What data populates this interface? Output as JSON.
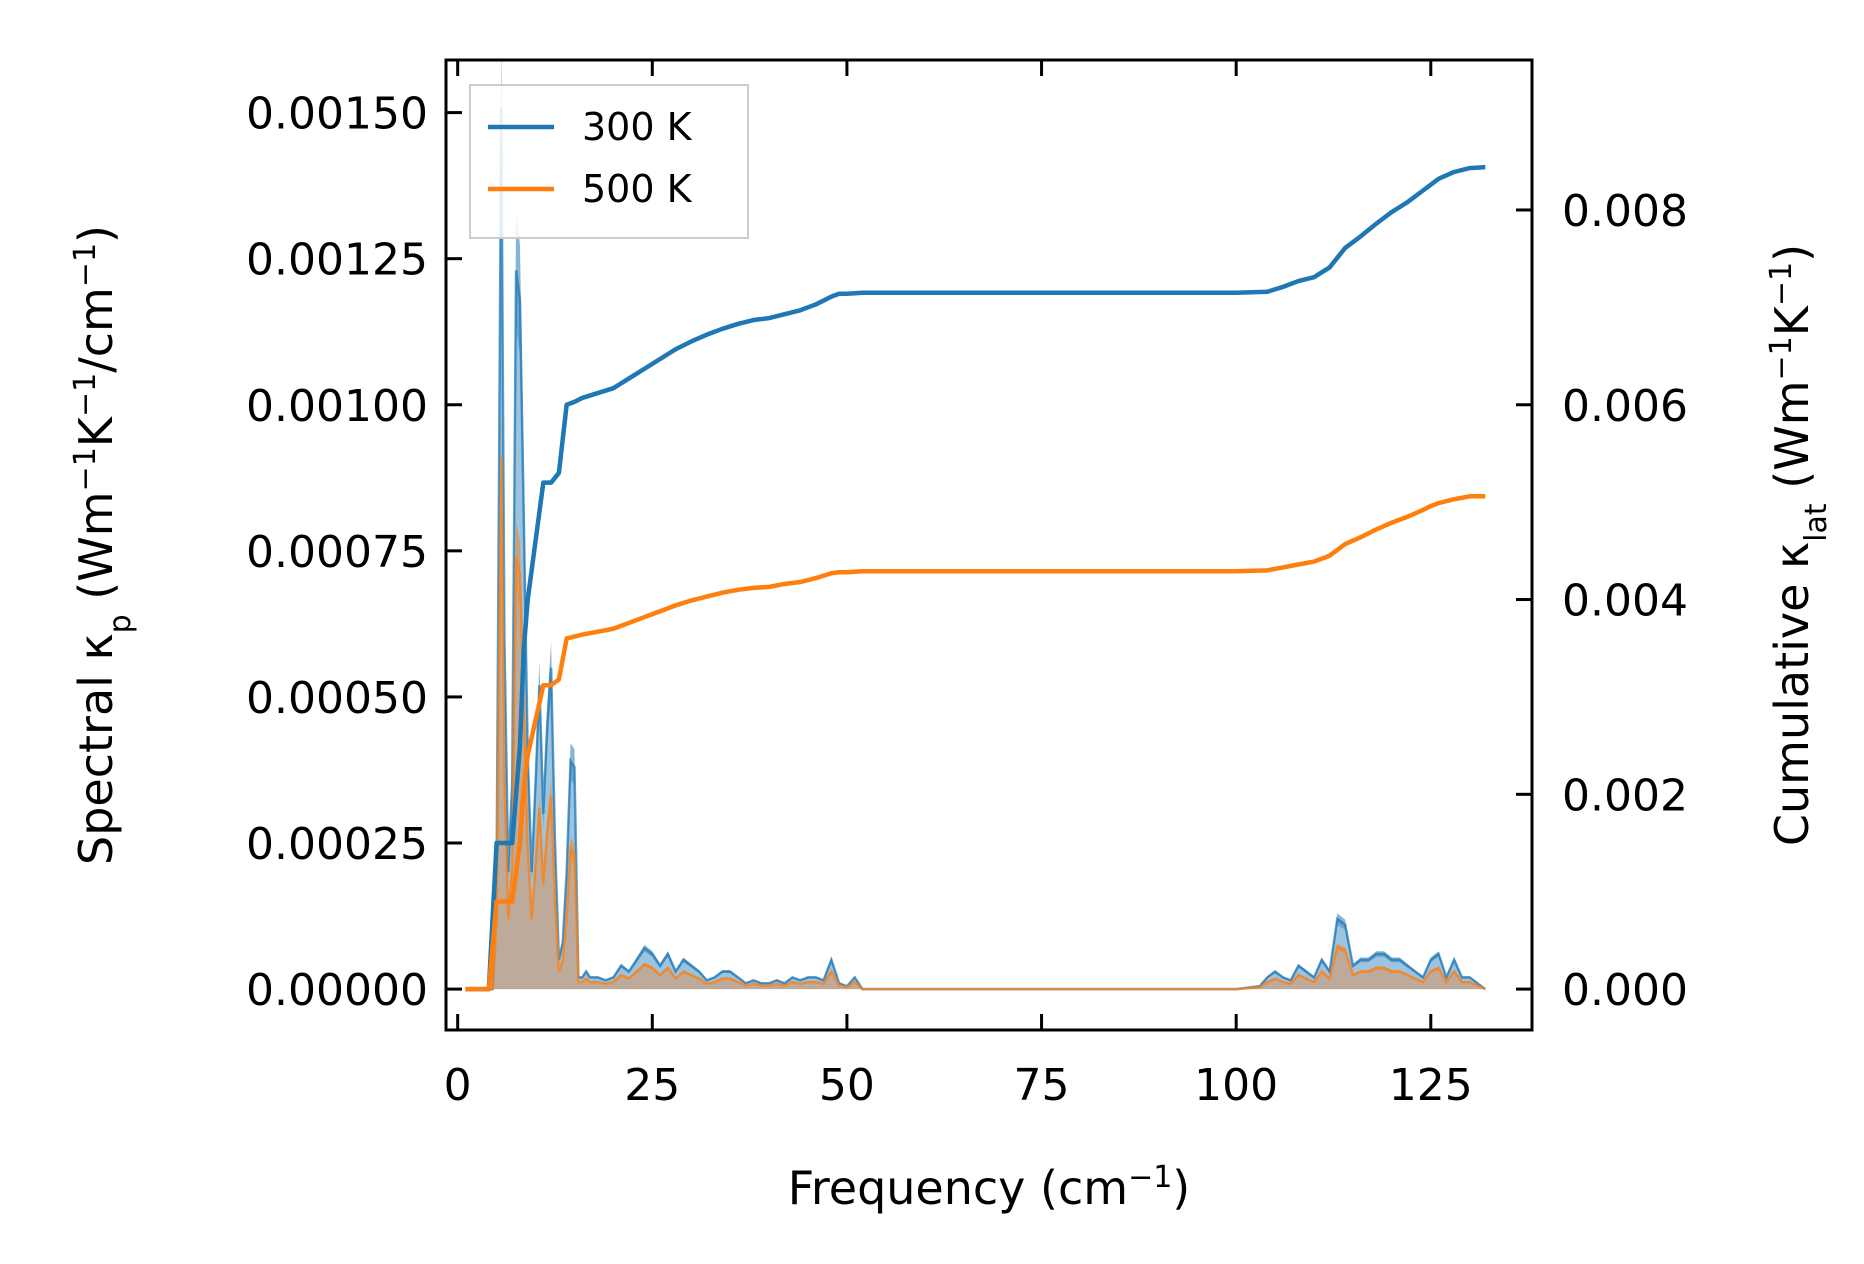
{
  "chart_data": {
    "type": "line",
    "xlabel": "Frequency (cm⁻¹)",
    "xlabel_base": "Frequency (cm",
    "xlabel_sup": "−1",
    "xlabel_end": ")",
    "ylabel_left": "Spectral κp (Wm⁻¹K⁻¹/cm⁻¹)",
    "ylabel_left_parts": {
      "a": "Spectral κ",
      "sub": "p",
      "b": " (Wm",
      "s1": "−1",
      "c": "K",
      "s2": "−1",
      "d": "/cm",
      "s3": "−1",
      "e": ")"
    },
    "ylabel_right": "Cumulative κlat (Wm⁻¹K⁻¹)",
    "ylabel_right_parts": {
      "a": "Cumulative κ",
      "sub": "lat",
      "b": " (Wm",
      "s1": "−1",
      "c": "K",
      "s2": "−1",
      "d": ")"
    },
    "xlim": [
      -1.5,
      138
    ],
    "ylim_left": [
      -7e-05,
      0.00159
    ],
    "ylim_right": [
      -0.00042,
      0.00954
    ],
    "x_ticks": [
      0,
      25,
      50,
      75,
      100,
      125
    ],
    "x_tick_labels": [
      "0",
      "25",
      "50",
      "75",
      "100",
      "125"
    ],
    "y_left_ticks": [
      0,
      0.00025,
      0.0005,
      0.00075,
      0.001,
      0.00125,
      0.0015
    ],
    "y_left_tick_labels": [
      "0.00000",
      "0.00025",
      "0.00050",
      "0.00075",
      "0.00100",
      "0.00125",
      "0.00150"
    ],
    "y_right_ticks": [
      0,
      0.002,
      0.004,
      0.006,
      0.008
    ],
    "y_right_tick_labels": [
      "0.000",
      "0.002",
      "0.004",
      "0.006",
      "0.008"
    ],
    "legend": {
      "location": "upper-left",
      "entries": [
        "300 K",
        "500 K"
      ]
    },
    "series": [
      {
        "name": "300 K",
        "color": "#1f77b4",
        "fill_color": "#5a9bcc",
        "spectral": {
          "x": [
            1,
            4,
            4.5,
            5,
            5.6,
            6,
            6.5,
            7,
            7.5,
            8,
            8.5,
            9,
            9.5,
            10,
            10.5,
            11,
            11.5,
            12,
            12.5,
            13,
            13.5,
            14,
            14.5,
            15,
            15.5,
            16,
            16.5,
            17,
            18,
            19,
            20,
            21,
            22,
            23,
            24,
            25,
            26,
            27,
            28,
            29,
            30,
            31,
            32,
            33,
            34,
            35,
            36,
            37,
            38,
            39,
            40,
            41,
            42,
            43,
            44,
            45,
            46,
            47,
            48,
            49,
            50,
            51,
            52,
            53,
            60,
            80,
            100,
            103,
            104,
            105,
            106,
            107,
            108,
            109,
            110,
            111,
            112,
            113,
            114,
            115,
            116,
            117,
            118,
            119,
            120,
            121,
            122,
            123,
            124,
            125,
            126,
            127,
            128,
            129,
            130,
            131,
            132
          ],
          "y": [
            0,
            0,
            0,
            0.0002,
            0.00151,
            0.0006,
            0.0002,
            0.00035,
            0.00123,
            0.00118,
            0.0008,
            0.0004,
            0.0002,
            0.00035,
            0.00052,
            0.0003,
            0.00045,
            0.00055,
            0.00025,
            5e-05,
            8e-05,
            0.0002,
            0.00039,
            0.00038,
            2e-05,
            2e-05,
            3e-05,
            2e-05,
            2e-05,
            1.5e-05,
            2e-05,
            4e-05,
            3e-05,
            5e-05,
            7e-05,
            6e-05,
            4e-05,
            6e-05,
            3e-05,
            5e-05,
            4e-05,
            3e-05,
            1.5e-05,
            2e-05,
            3e-05,
            3e-05,
            2e-05,
            1e-05,
            1.5e-05,
            1e-05,
            1e-05,
            1.5e-05,
            1e-05,
            2e-05,
            1.5e-05,
            2e-05,
            2e-05,
            1.5e-05,
            5e-05,
            1e-05,
            5e-06,
            2e-05,
            0,
            0,
            0,
            0,
            0,
            5e-06,
            2e-05,
            3e-05,
            2e-05,
            1.5e-05,
            4e-05,
            3e-05,
            2e-05,
            5e-05,
            3e-05,
            0.00012,
            0.00011,
            4e-05,
            5e-05,
            5e-05,
            6e-05,
            6e-05,
            5e-05,
            5e-05,
            4e-05,
            3e-05,
            2e-05,
            5e-05,
            6e-05,
            2e-05,
            5e-05,
            2e-05,
            2e-05,
            1e-05,
            0
          ],
          "band_half_width_fraction": 0.08
        },
        "cumulative": {
          "x": [
            1,
            4,
            5,
            7,
            8,
            8.5,
            9,
            10,
            11,
            12,
            13,
            14,
            15,
            16,
            18,
            20,
            22,
            24,
            26,
            28,
            30,
            32,
            34,
            36,
            38,
            40,
            42,
            44,
            46,
            48,
            49,
            50,
            52,
            60,
            80,
            100,
            104,
            106,
            108,
            110,
            112,
            113,
            114,
            116,
            118,
            120,
            122,
            124,
            125,
            126,
            128,
            130,
            132
          ],
          "y": [
            0,
            0,
            0.0015,
            0.0015,
            0.0025,
            0.0035,
            0.004,
            0.0046,
            0.0052,
            0.0052,
            0.0053,
            0.006,
            0.00603,
            0.00607,
            0.00612,
            0.00617,
            0.00627,
            0.00637,
            0.00647,
            0.00657,
            0.00665,
            0.00672,
            0.00678,
            0.00683,
            0.00687,
            0.00689,
            0.00693,
            0.00697,
            0.00703,
            0.00711,
            0.00714,
            0.00714,
            0.00715,
            0.00715,
            0.00715,
            0.00715,
            0.00716,
            0.00721,
            0.00727,
            0.00731,
            0.00741,
            0.00751,
            0.00761,
            0.00773,
            0.00786,
            0.00798,
            0.00808,
            0.0082,
            0.00826,
            0.00832,
            0.00839,
            0.00843,
            0.00844
          ]
        }
      },
      {
        "name": "500 K",
        "color": "#ff7f0e",
        "fill_color": "#d49a6a",
        "spectral": {
          "x": [
            1,
            4,
            4.5,
            5,
            5.6,
            6,
            6.5,
            7,
            7.5,
            8,
            8.5,
            9,
            9.5,
            10,
            10.5,
            11,
            11.5,
            12,
            12.5,
            13,
            13.5,
            14,
            14.5,
            15,
            15.5,
            16,
            16.5,
            17,
            18,
            19,
            20,
            21,
            22,
            23,
            24,
            25,
            26,
            27,
            28,
            29,
            30,
            31,
            32,
            33,
            34,
            35,
            36,
            37,
            38,
            39,
            40,
            41,
            42,
            43,
            44,
            45,
            46,
            47,
            48,
            49,
            50,
            51,
            52,
            53,
            60,
            80,
            100,
            103,
            104,
            105,
            106,
            107,
            108,
            109,
            110,
            111,
            112,
            113,
            114,
            115,
            116,
            117,
            118,
            119,
            120,
            121,
            122,
            123,
            124,
            125,
            126,
            127,
            128,
            129,
            130,
            131,
            132
          ],
          "y": [
            0,
            0,
            0,
            0.00012,
            0.00091,
            0.00036,
            0.00012,
            0.00021,
            0.00074,
            0.00071,
            0.00048,
            0.00024,
            0.00012,
            0.00021,
            0.00031,
            0.00018,
            0.00027,
            0.00033,
            0.00015,
            3e-05,
            4.8e-05,
            0.00012,
            0.00024,
            0.00023,
            1.2e-05,
            1.2e-05,
            1.8e-05,
            1.2e-05,
            1.2e-05,
            9e-06,
            1.2e-05,
            2.4e-05,
            1.8e-05,
            3e-05,
            4.2e-05,
            3.6e-05,
            2.4e-05,
            3.6e-05,
            1.8e-05,
            3e-05,
            2.4e-05,
            1.8e-05,
            9e-06,
            1.2e-05,
            1.8e-05,
            1.8e-05,
            1.2e-05,
            6e-06,
            9e-06,
            6e-06,
            6e-06,
            9e-06,
            6e-06,
            1.2e-05,
            9e-06,
            1.2e-05,
            1.2e-05,
            9e-06,
            3e-05,
            6e-06,
            3e-06,
            1.2e-05,
            0,
            0,
            0,
            0,
            0,
            3e-06,
            1.2e-05,
            1.8e-05,
            1.2e-05,
            9e-06,
            2.4e-05,
            1.8e-05,
            1.2e-05,
            3e-05,
            1.8e-05,
            7.2e-05,
            6.6e-05,
            2.4e-05,
            3e-05,
            3e-05,
            3.6e-05,
            3.6e-05,
            3e-05,
            3e-05,
            2.4e-05,
            1.8e-05,
            1.2e-05,
            3e-05,
            3.6e-05,
            1.2e-05,
            3e-05,
            1.2e-05,
            1.2e-05,
            6e-06,
            0
          ],
          "band_half_width_fraction": 0.08
        },
        "cumulative": {
          "x": [
            1,
            4,
            5,
            7,
            8,
            8.5,
            9,
            10,
            11,
            12,
            13,
            14,
            15,
            16,
            18,
            20,
            22,
            24,
            26,
            28,
            30,
            32,
            34,
            36,
            38,
            40,
            42,
            44,
            46,
            48,
            49,
            50,
            52,
            60,
            80,
            100,
            104,
            106,
            108,
            110,
            112,
            113,
            114,
            116,
            118,
            120,
            122,
            124,
            125,
            126,
            128,
            130,
            132
          ],
          "y": [
            0,
            0,
            0.0009,
            0.0009,
            0.0015,
            0.0021,
            0.0024,
            0.00276,
            0.00312,
            0.00312,
            0.00318,
            0.0036,
            0.00362,
            0.00364,
            0.00367,
            0.0037,
            0.00376,
            0.00382,
            0.00388,
            0.00394,
            0.00399,
            0.00403,
            0.00407,
            0.0041,
            0.00412,
            0.00413,
            0.00416,
            0.00418,
            0.00422,
            0.00427,
            0.00428,
            0.00428,
            0.00429,
            0.00429,
            0.00429,
            0.00429,
            0.0043,
            0.00433,
            0.00436,
            0.00439,
            0.00445,
            0.00451,
            0.00457,
            0.00464,
            0.00472,
            0.00479,
            0.00485,
            0.00492,
            0.00496,
            0.00499,
            0.00503,
            0.00506,
            0.00506
          ]
        }
      }
    ]
  }
}
